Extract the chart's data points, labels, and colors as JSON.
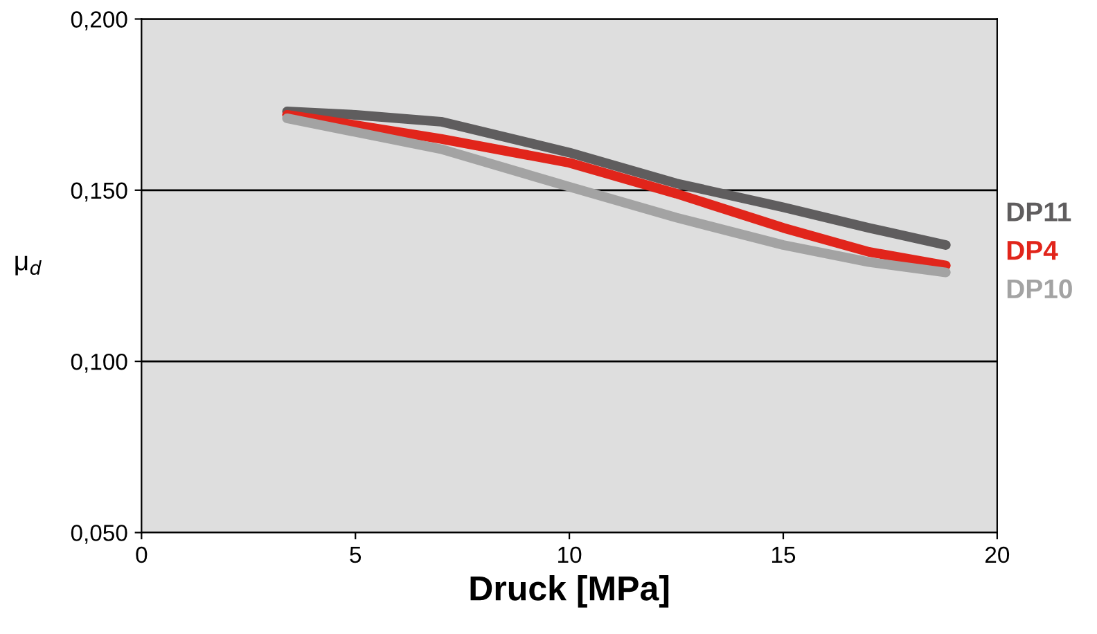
{
  "chart_data": {
    "type": "line",
    "xlabel": "Druck [MPa]",
    "ylabel": "μ$_{d}$",
    "xlim": [
      0,
      20
    ],
    "xticks": [
      0,
      5,
      10,
      15,
      20
    ],
    "ylim": [
      0.05,
      0.2
    ],
    "yticks": [
      {
        "value": 0.05,
        "label": "0,050"
      },
      {
        "value": 0.1,
        "label": "0,100"
      },
      {
        "value": 0.15,
        "label": "0,150"
      },
      {
        "value": 0.2,
        "label": "0,200"
      }
    ],
    "grid": "y",
    "legend": "right",
    "marker": "none",
    "line_style": "solid",
    "x": [
      3.4,
      5,
      7,
      10,
      12.5,
      15,
      17,
      18.8
    ],
    "series": [
      {
        "name": "DP11",
        "color": "#5f5d5e",
        "values": [
          0.173,
          0.172,
          0.17,
          0.161,
          0.152,
          0.145,
          0.139,
          0.134
        ]
      },
      {
        "name": "DP4",
        "color": "#e1251b",
        "values": [
          0.172,
          0.169,
          0.165,
          0.158,
          0.149,
          0.139,
          0.132,
          0.128
        ]
      },
      {
        "name": "DP10",
        "color": "#a3a3a3",
        "values": [
          0.171,
          0.167,
          0.162,
          0.151,
          0.142,
          0.134,
          0.129,
          0.126
        ]
      }
    ]
  }
}
